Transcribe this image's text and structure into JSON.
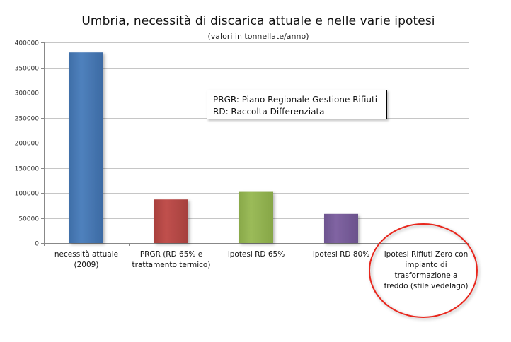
{
  "chart_data": {
    "type": "bar",
    "title": "Umbria, necessità di discarica attuale e nelle varie ipotesi",
    "subtitle": "(valori in tonnellate/anno)",
    "categories": [
      [
        "necessità attuale",
        "(2009)"
      ],
      [
        "PRGR (RD 65% e",
        "trattamento termico)"
      ],
      [
        "ipotesi RD 65%"
      ],
      [
        "ipotesi RD 80%"
      ],
      [
        "ipotesi Rifiuti Zero con",
        "impianto di",
        "trasformazione a",
        "freddo (stile vedelago)"
      ]
    ],
    "values": [
      380000,
      87000,
      102000,
      58000,
      0
    ],
    "colors": [
      "#4F81BD",
      "#C0504D",
      "#9BBB59",
      "#8064A2",
      "#4BACC6"
    ],
    "ylim": [
      0,
      400000
    ],
    "yticks": [
      0,
      50000,
      100000,
      150000,
      200000,
      250000,
      300000,
      350000,
      400000
    ],
    "grid": true,
    "highlight": {
      "category_index": 4,
      "shape": "ellipse",
      "color": "#E8261C"
    }
  },
  "note": {
    "lines": [
      "PRGR: Piano Regionale Gestione Rifiuti",
      "RD: Raccolta Differenziata"
    ]
  }
}
